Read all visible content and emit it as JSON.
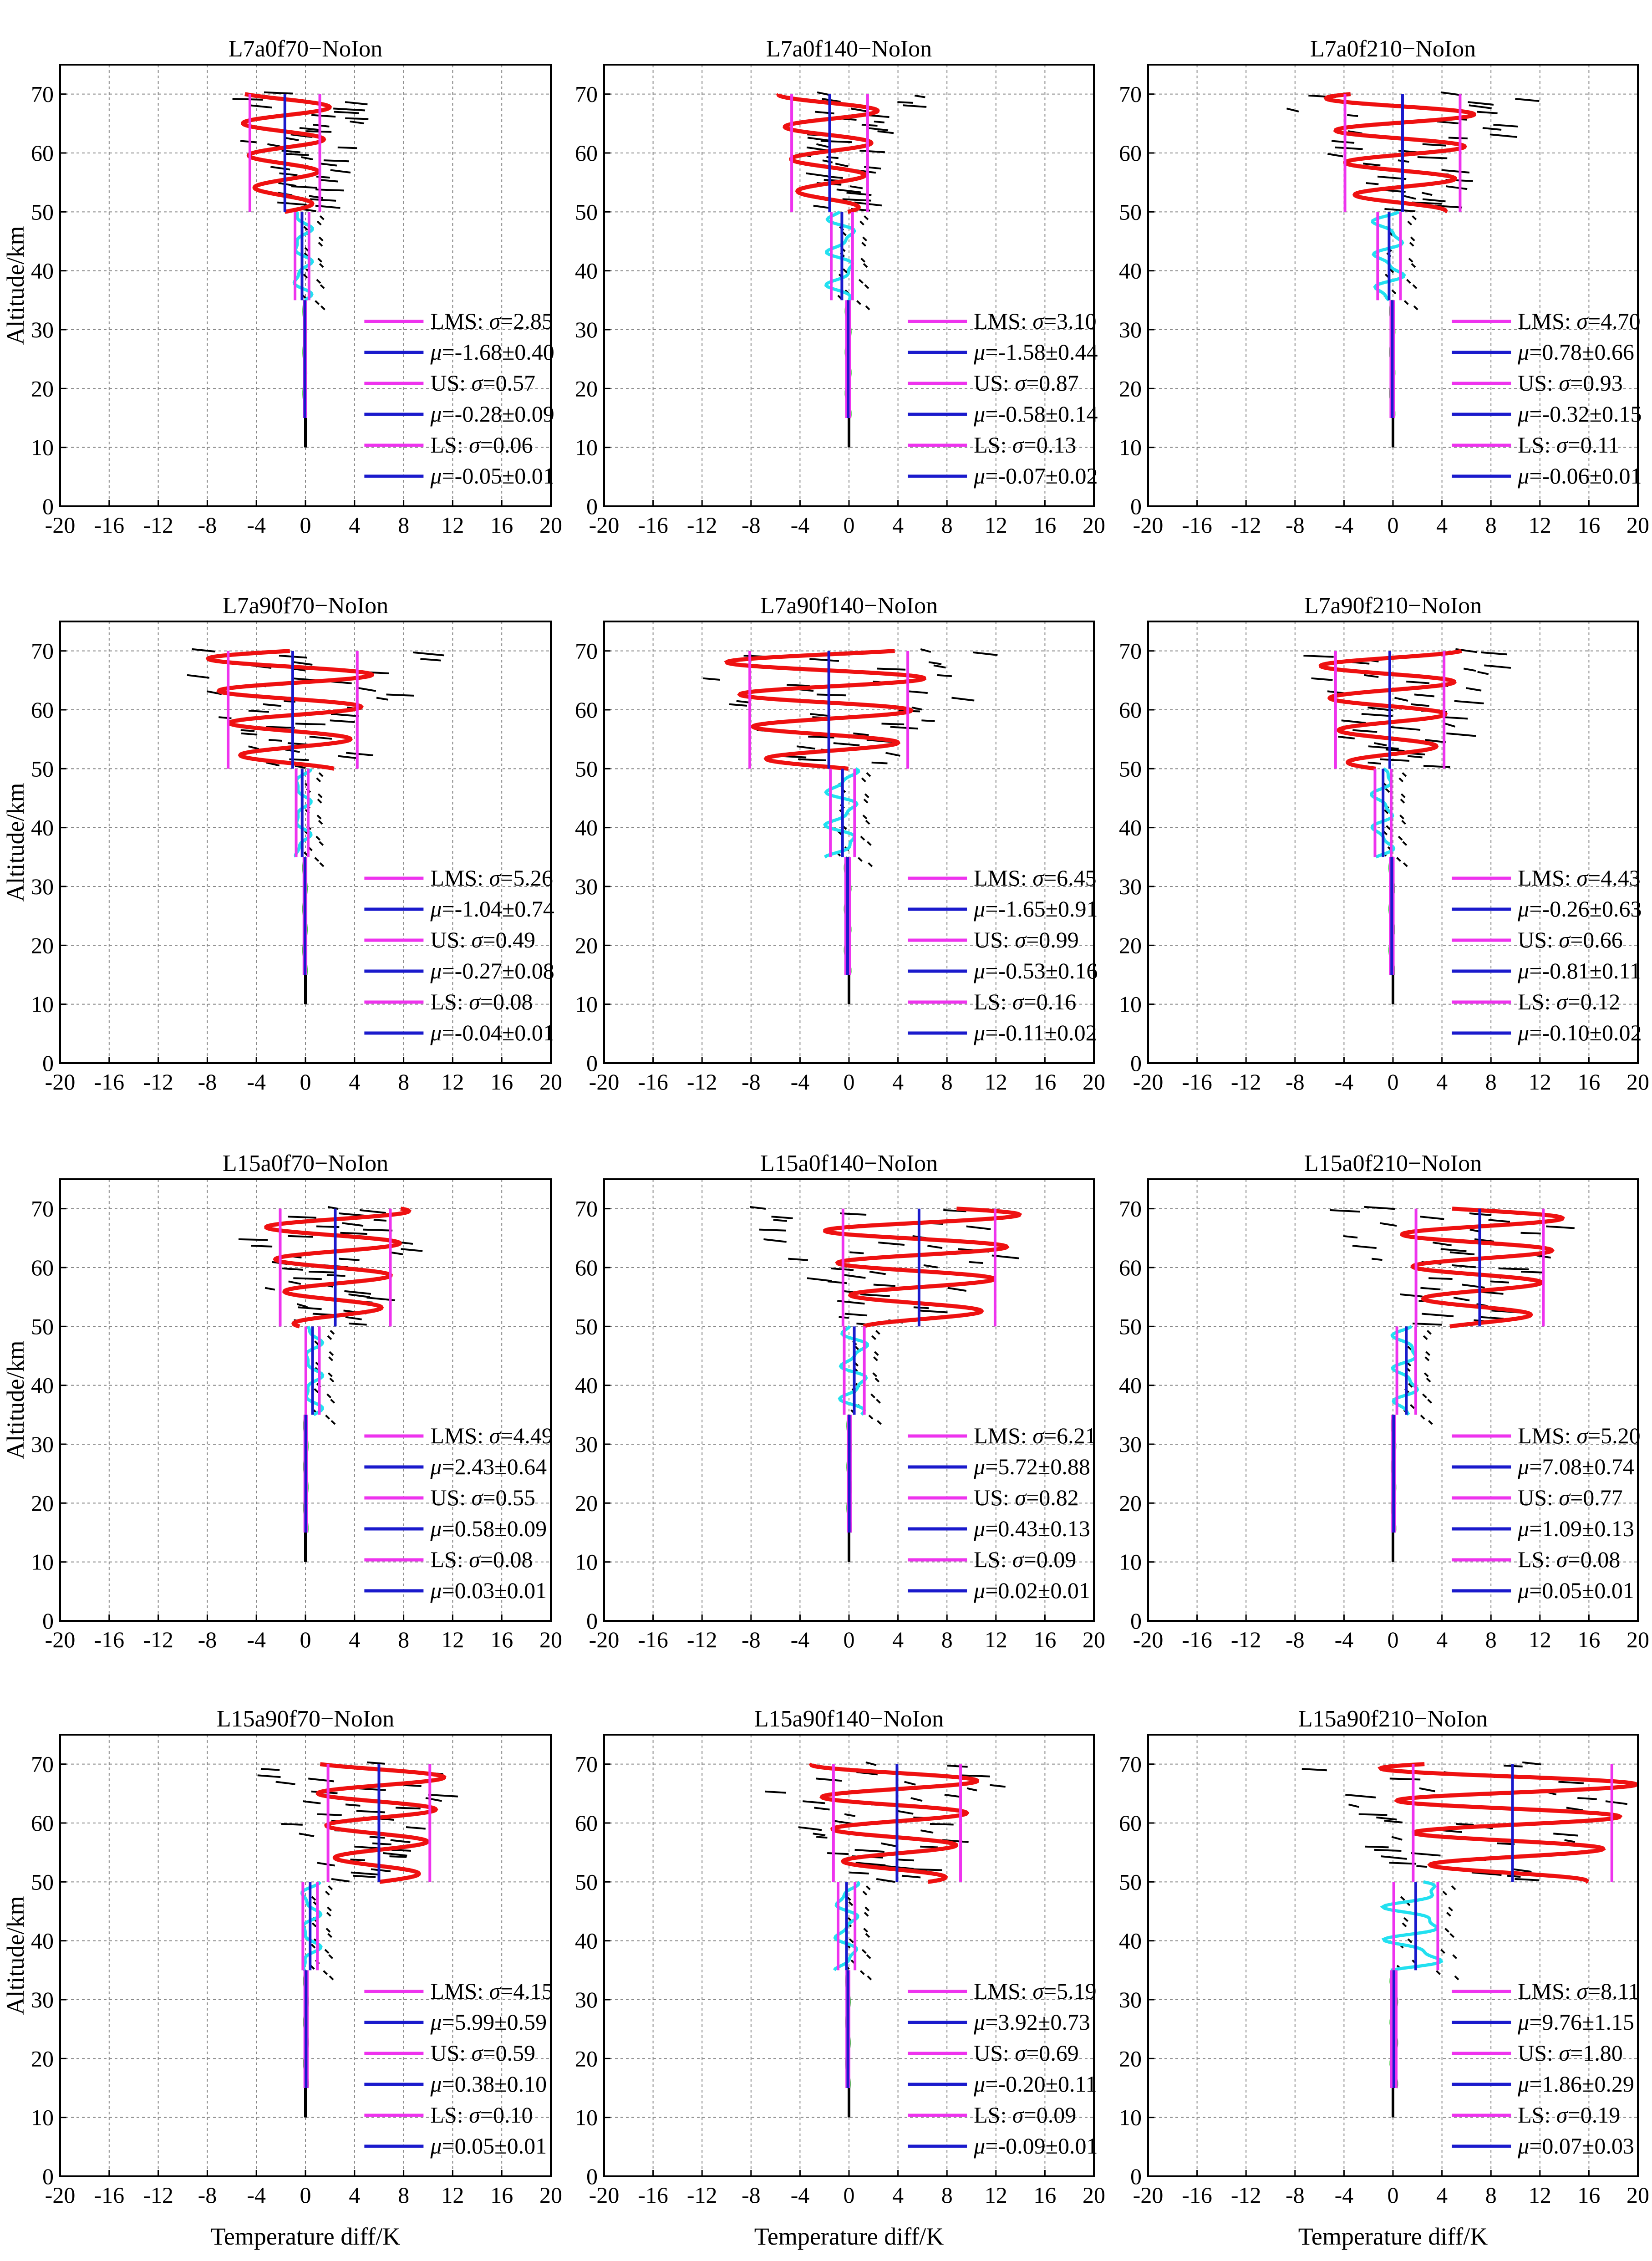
{
  "colors": {
    "lms": "#ee33ee",
    "mean": "#1a1acc",
    "red_profile": "#ee1111",
    "cyan_profile": "#22e0f0",
    "green_profile": "#33cc33",
    "black_profile": "#000000",
    "grid": "#888888"
  },
  "chart_data": {
    "type": "line",
    "layout": "4 rows x 3 columns of small multiples",
    "xlabel": "Temperature diff/K",
    "ylabel": "Altitude/km",
    "xlim": [
      -20,
      20
    ],
    "ylim": [
      0,
      75
    ],
    "xticks": [
      "-20",
      "-16",
      "-12",
      "-8",
      "-4",
      "0",
      "4",
      "8",
      "12",
      "16",
      "20"
    ],
    "yticks": [
      "0",
      "10",
      "20",
      "30",
      "40",
      "50",
      "60",
      "70"
    ],
    "grid": true,
    "legend_position": "lower-right",
    "legend_labels": [
      "LMS:",
      "US:",
      "LS:"
    ],
    "panels": [
      {
        "title": "L7a0f70−NoIon",
        "lms": {
          "sigma": "2.85",
          "mu": "-1.68±0.40"
        },
        "us": {
          "sigma": "0.57",
          "mu": "-0.28±0.09"
        },
        "ls": {
          "sigma": "0.06",
          "mu": "-0.05±0.01"
        }
      },
      {
        "title": "L7a0f140−NoIon",
        "lms": {
          "sigma": "3.10",
          "mu": "-1.58±0.44"
        },
        "us": {
          "sigma": "0.87",
          "mu": "-0.58±0.14"
        },
        "ls": {
          "sigma": "0.13",
          "mu": "-0.07±0.02"
        }
      },
      {
        "title": "L7a0f210−NoIon",
        "lms": {
          "sigma": "4.70",
          "mu": "0.78±0.66"
        },
        "us": {
          "sigma": "0.93",
          "mu": "-0.32±0.15"
        },
        "ls": {
          "sigma": "0.11",
          "mu": "-0.06±0.01"
        }
      },
      {
        "title": "L7a90f70−NoIon",
        "lms": {
          "sigma": "5.26",
          "mu": "-1.04±0.74"
        },
        "us": {
          "sigma": "0.49",
          "mu": "-0.27±0.08"
        },
        "ls": {
          "sigma": "0.08",
          "mu": "-0.04±0.01"
        }
      },
      {
        "title": "L7a90f140−NoIon",
        "lms": {
          "sigma": "6.45",
          "mu": "-1.65±0.91"
        },
        "us": {
          "sigma": "0.99",
          "mu": "-0.53±0.16"
        },
        "ls": {
          "sigma": "0.16",
          "mu": "-0.11±0.02"
        }
      },
      {
        "title": "L7a90f210−NoIon",
        "lms": {
          "sigma": "4.43",
          "mu": "-0.26±0.63"
        },
        "us": {
          "sigma": "0.66",
          "mu": "-0.81±0.11"
        },
        "ls": {
          "sigma": "0.12",
          "mu": "-0.10±0.02"
        }
      },
      {
        "title": "L15a0f70−NoIon",
        "lms": {
          "sigma": "4.49",
          "mu": "2.43±0.64"
        },
        "us": {
          "sigma": "0.55",
          "mu": "0.58±0.09"
        },
        "ls": {
          "sigma": "0.08",
          "mu": "0.03±0.01"
        }
      },
      {
        "title": "L15a0f140−NoIon",
        "lms": {
          "sigma": "6.21",
          "mu": "5.72±0.88"
        },
        "us": {
          "sigma": "0.82",
          "mu": "0.43±0.13"
        },
        "ls": {
          "sigma": "0.09",
          "mu": "0.02±0.01"
        }
      },
      {
        "title": "L15a0f210−NoIon",
        "lms": {
          "sigma": "5.20",
          "mu": "7.08±0.74"
        },
        "us": {
          "sigma": "0.77",
          "mu": "1.09±0.13"
        },
        "ls": {
          "sigma": "0.08",
          "mu": "0.05±0.01"
        }
      },
      {
        "title": "L15a90f70−NoIon",
        "lms": {
          "sigma": "4.15",
          "mu": "5.99±0.59"
        },
        "us": {
          "sigma": "0.59",
          "mu": "0.38±0.10"
        },
        "ls": {
          "sigma": "0.10",
          "mu": "0.05±0.01"
        }
      },
      {
        "title": "L15a90f140−NoIon",
        "lms": {
          "sigma": "5.19",
          "mu": "3.92±0.73"
        },
        "us": {
          "sigma": "0.69",
          "mu": "-0.20±0.11"
        },
        "ls": {
          "sigma": "0.09",
          "mu": "-0.09±0.01"
        }
      },
      {
        "title": "L15a90f210−NoIon",
        "lms": {
          "sigma": "8.11",
          "mu": "9.76±1.15"
        },
        "us": {
          "sigma": "1.80",
          "mu": "1.86±0.29"
        },
        "ls": {
          "sigma": "0.19",
          "mu": "0.07±0.03"
        }
      }
    ]
  }
}
